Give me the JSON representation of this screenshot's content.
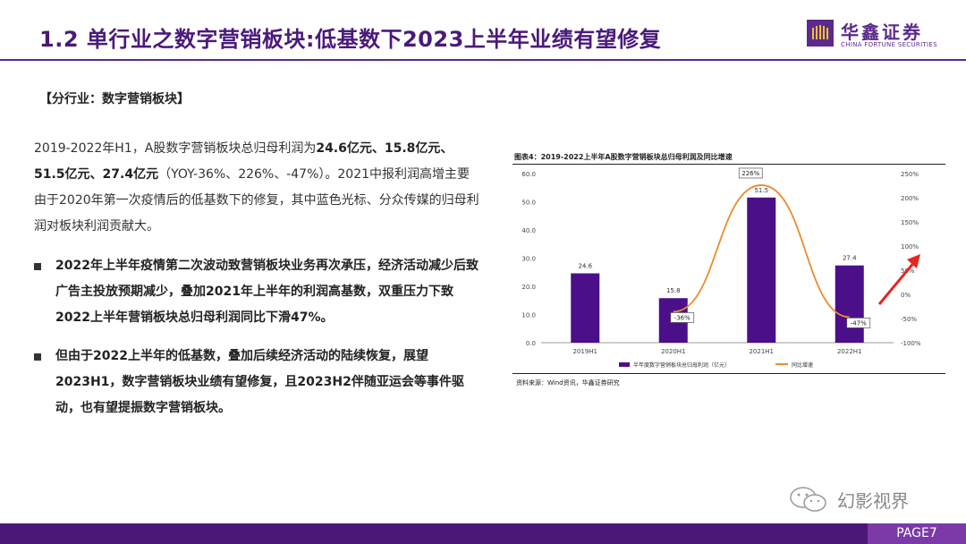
{
  "header": {
    "title": "1.2 单行业之数字营销板块:低基数下2023上半年业绩有望修复",
    "logo_cn": "华鑫证券",
    "logo_en": "CHINA FORTUNE SECURITIES",
    "brand_color": "#5b2a8c"
  },
  "section_tag": "【分行业：数字营销板块】",
  "intro": {
    "p1": "2019-2022年H1，A股数字营销板块总归母利润为",
    "v1": "24.6亿元、15.8亿元、",
    "v2": "51.5亿元、27.4亿元",
    "p2": "（YOY-36%、226%、-47%）。2021中报利润高增主要由于2020年第一次疫情后的低基数下的修复，其中蓝色光标、分众传媒的归母利润对板块利润贡献大。"
  },
  "bullets": [
    "2022年上半年疫情第二次波动致营销板块业务再次承压，经济活动减少后致广告主投放预期减少，叠加2021年上半年的利润高基数，双重压力下致2022上半年营销板块总归母利润同比下滑47%。",
    "但由于2022上半年的低基数，叠加后续经济活动的陆续恢复，展望2023H1，数字营销板块业绩有望修复，且2023H2伴随亚运会等事件驱动，也有望提振数字营销板块。"
  ],
  "chart_caption": "图表4：2019-2022上半年A股数字营销板块总归母利润及同比增速",
  "chart_source": "资料来源：Wind资讯，华鑫证券研究",
  "chart_data": {
    "type": "bar",
    "categories": [
      "2019H1",
      "2020H1",
      "2021H1",
      "2022H1"
    ],
    "series": [
      {
        "name": "半年度数字营销板块总归母利润（亿元）",
        "type": "bar",
        "axis": "left",
        "values": [
          24.6,
          15.8,
          51.5,
          27.4
        ],
        "color": "#4b0f8a"
      },
      {
        "name": "同比增速",
        "type": "line",
        "axis": "right",
        "values": [
          null,
          -36,
          226,
          -47
        ],
        "color": "#ed8a2f"
      }
    ],
    "data_labels_bar": [
      "24.6",
      "15.8",
      "51.5",
      "27.4"
    ],
    "data_labels_line": [
      "",
      "-36%",
      "226%",
      "-47%"
    ],
    "ylim_left": [
      0,
      60
    ],
    "yticks_left": [
      "0.0",
      "10.0",
      "20.0",
      "30.0",
      "40.0",
      "50.0",
      "60.0"
    ],
    "ylim_right": [
      -100,
      250
    ],
    "yticks_right": [
      "-100%",
      "-50%",
      "0%",
      "50%",
      "100%",
      "150%",
      "200%",
      "250%"
    ],
    "grid": false,
    "legend_position": "bottom",
    "annotation_arrow_color": "#e8241d"
  },
  "watermark": "幻影视界",
  "footer": {
    "page": "PAGE7"
  }
}
